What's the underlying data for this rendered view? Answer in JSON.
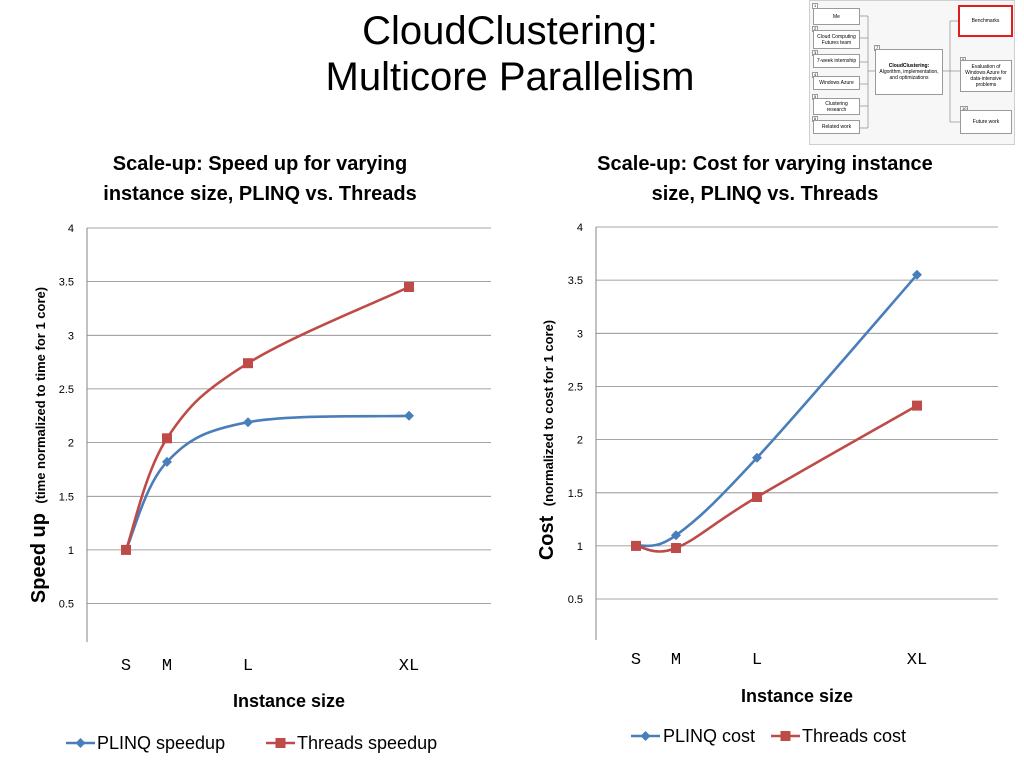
{
  "slide": {
    "title_line1": "CloudClustering:",
    "title_line2": "Multicore Parallelism"
  },
  "thumbnail": {
    "left_items": [
      {
        "num": "1",
        "label": "Me"
      },
      {
        "num": "2",
        "label": "Cloud Computing Futures team"
      },
      {
        "num": "3",
        "label": "7-week internship"
      },
      {
        "num": "4",
        "label": "Windows Azure"
      },
      {
        "num": "5",
        "label": "Clustering research"
      },
      {
        "num": "6",
        "label": "Related work"
      }
    ],
    "center_item": {
      "num": "7",
      "label_bold": "CloudClustering:",
      "label": "Algorithm, implementation, and optimizations"
    },
    "right_items": [
      {
        "num": "8",
        "label": "Benchmarks",
        "highlighted": true
      },
      {
        "num": "9",
        "label": "Evaluation of Windows Azure for data-intensive problems",
        "highlighted": false
      },
      {
        "num": "10",
        "label": "Future work",
        "highlighted": false
      }
    ],
    "highlight_color": "#e01e1e"
  },
  "colors": {
    "plinq": "#4a7ebb",
    "threads": "#be4b48",
    "axis": "#868686",
    "grid": "#868686"
  },
  "chart_data": [
    {
      "type": "line",
      "title_line1": "Scale-up: Speed up for varying",
      "title_line2": "instance size, PLINQ vs. Threads",
      "xlabel": "Instance size",
      "ylabel_main": "Speed up",
      "ylabel_sub": "(time normalized to time for 1 core)",
      "categories": [
        "S",
        "M",
        "L",
        "XL"
      ],
      "x": [
        1,
        2,
        4,
        8
      ],
      "ylim": [
        0,
        4
      ],
      "yticks": [
        "0.5",
        "1",
        "1.5",
        "2",
        "2.5",
        "3",
        "3.5",
        "4"
      ],
      "ytick_values": [
        0.5,
        1,
        1.5,
        2,
        2.5,
        3,
        3.5,
        4
      ],
      "grid": true,
      "legend_position": "bottom",
      "series": [
        {
          "name": "PLINQ speedup",
          "marker": "diamond",
          "values": [
            1.0,
            1.82,
            2.19,
            2.25
          ]
        },
        {
          "name": "Threads speedup",
          "marker": "square",
          "values": [
            1.0,
            2.04,
            2.74,
            3.45
          ]
        }
      ]
    },
    {
      "type": "line",
      "title_line1": "Scale-up: Cost for varying instance",
      "title_line2": "size, PLINQ vs. Threads",
      "xlabel": "Instance size",
      "ylabel_main": "Cost",
      "ylabel_sub": "(normalized to cost for 1 core)",
      "categories": [
        "S",
        "M",
        "L",
        "XL"
      ],
      "x": [
        1,
        2,
        4,
        8
      ],
      "ylim": [
        0,
        4
      ],
      "yticks": [
        "0.5",
        "1",
        "1.5",
        "2",
        "2.5",
        "3",
        "3.5",
        "4"
      ],
      "ytick_values": [
        0.5,
        1,
        1.5,
        2,
        2.5,
        3,
        3.5,
        4
      ],
      "grid": true,
      "legend_position": "bottom",
      "series": [
        {
          "name": "PLINQ cost",
          "marker": "diamond",
          "values": [
            1.0,
            1.1,
            1.83,
            3.55
          ]
        },
        {
          "name": "Threads cost",
          "marker": "square",
          "values": [
            1.0,
            0.98,
            1.46,
            2.32
          ]
        }
      ]
    }
  ]
}
